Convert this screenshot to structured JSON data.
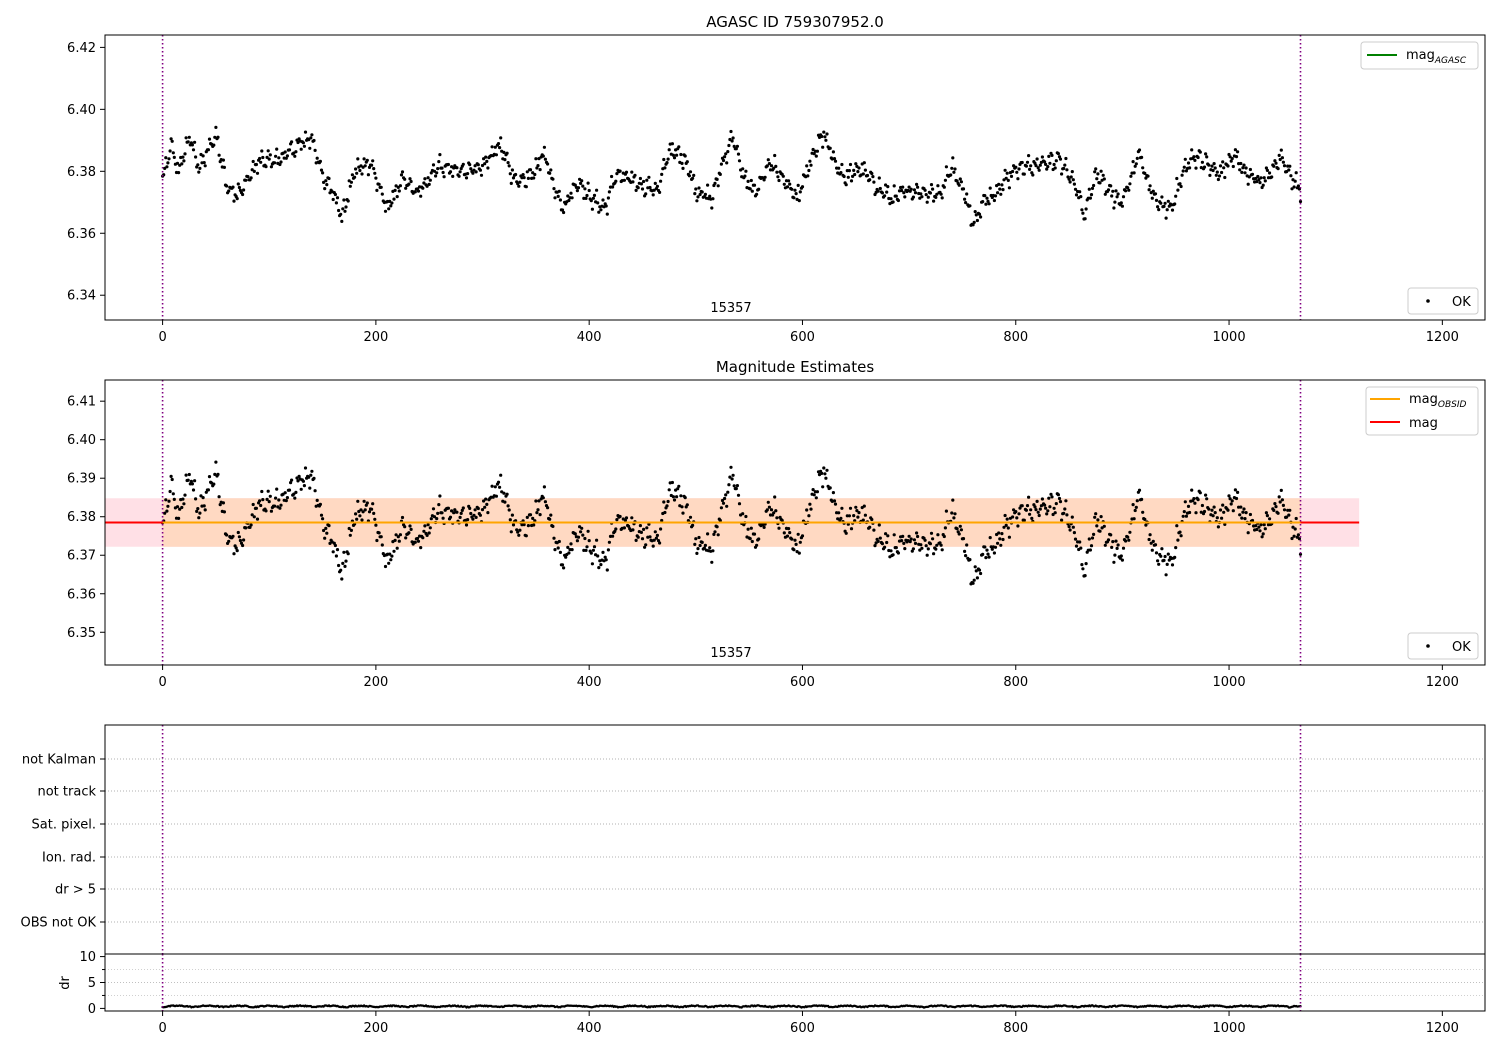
{
  "chart_data": [
    {
      "type": "scatter",
      "title": "AGASC ID 759307952.0",
      "xlabel": "",
      "ylabel": "",
      "xlim": [
        -54,
        1240
      ],
      "ylim": [
        6.332,
        6.424
      ],
      "xticks": [
        0,
        200,
        400,
        600,
        800,
        1000,
        1200
      ],
      "yticks": [
        6.34,
        6.36,
        6.38,
        6.4,
        6.42
      ],
      "xtick_labels": [
        "0",
        "200",
        "400",
        "600",
        "800",
        "1000",
        "1200"
      ],
      "ytick_labels": [
        "6.34",
        "6.36",
        "6.38",
        "6.40",
        "6.42"
      ],
      "vlines": [
        0,
        1067
      ],
      "obsid_label": "15357",
      "obsid_label_x": 533,
      "legend_lines": [
        {
          "label": "mag",
          "sub": "AGASC",
          "color": "#008000"
        }
      ],
      "legend_points": [
        {
          "label": "OK",
          "color": "#000000"
        }
      ],
      "series": [
        {
          "name": "OK",
          "x_range": [
            0,
            1067
          ],
          "anchors": [
            [
              0,
              6.377
            ],
            [
              8,
              6.388
            ],
            [
              15,
              6.38
            ],
            [
              25,
              6.391
            ],
            [
              35,
              6.381
            ],
            [
              50,
              6.392
            ],
            [
              60,
              6.376
            ],
            [
              70,
              6.372
            ],
            [
              90,
              6.383
            ],
            [
              110,
              6.384
            ],
            [
              130,
              6.389
            ],
            [
              140,
              6.391
            ],
            [
              150,
              6.378
            ],
            [
              160,
              6.374
            ],
            [
              168,
              6.365
            ],
            [
              180,
              6.38
            ],
            [
              195,
              6.383
            ],
            [
              210,
              6.368
            ],
            [
              225,
              6.377
            ],
            [
              240,
              6.373
            ],
            [
              260,
              6.382
            ],
            [
              280,
              6.38
            ],
            [
              300,
              6.381
            ],
            [
              315,
              6.389
            ],
            [
              330,
              6.377
            ],
            [
              345,
              6.378
            ],
            [
              358,
              6.386
            ],
            [
              365,
              6.378
            ],
            [
              375,
              6.368
            ],
            [
              390,
              6.377
            ],
            [
              400,
              6.372
            ],
            [
              415,
              6.368
            ],
            [
              425,
              6.379
            ],
            [
              440,
              6.377
            ],
            [
              455,
              6.375
            ],
            [
              465,
              6.374
            ],
            [
              475,
              6.387
            ],
            [
              490,
              6.384
            ],
            [
              500,
              6.374
            ],
            [
              515,
              6.371
            ],
            [
              525,
              6.383
            ],
            [
              535,
              6.391
            ],
            [
              545,
              6.378
            ],
            [
              555,
              6.373
            ],
            [
              570,
              6.383
            ],
            [
              585,
              6.376
            ],
            [
              595,
              6.371
            ],
            [
              610,
              6.385
            ],
            [
              620,
              6.392
            ],
            [
              630,
              6.383
            ],
            [
              640,
              6.378
            ],
            [
              655,
              6.381
            ],
            [
              670,
              6.375
            ],
            [
              685,
              6.371
            ],
            [
              700,
              6.374
            ],
            [
              720,
              6.373
            ],
            [
              730,
              6.373
            ],
            [
              740,
              6.382
            ],
            [
              752,
              6.373
            ],
            [
              760,
              6.363
            ],
            [
              770,
              6.37
            ],
            [
              785,
              6.375
            ],
            [
              800,
              6.381
            ],
            [
              820,
              6.382
            ],
            [
              840,
              6.384
            ],
            [
              855,
              6.376
            ],
            [
              865,
              6.366
            ],
            [
              875,
              6.38
            ],
            [
              890,
              6.373
            ],
            [
              900,
              6.369
            ],
            [
              915,
              6.386
            ],
            [
              925,
              6.375
            ],
            [
              935,
              6.369
            ],
            [
              945,
              6.368
            ],
            [
              960,
              6.382
            ],
            [
              970,
              6.385
            ],
            [
              990,
              6.379
            ],
            [
              1005,
              6.385
            ],
            [
              1015,
              6.38
            ],
            [
              1030,
              6.376
            ],
            [
              1050,
              6.385
            ],
            [
              1058,
              6.378
            ],
            [
              1067,
              6.374
            ]
          ]
        }
      ]
    },
    {
      "type": "scatter",
      "title": "Magnitude Estimates",
      "xlabel": "",
      "ylabel": "",
      "xlim": [
        -54,
        1240
      ],
      "ylim": [
        6.3415,
        6.4155
      ],
      "xticks": [
        0,
        200,
        400,
        600,
        800,
        1000,
        1200
      ],
      "yticks": [
        6.35,
        6.36,
        6.37,
        6.38,
        6.39,
        6.4,
        6.41
      ],
      "xtick_labels": [
        "0",
        "200",
        "400",
        "600",
        "800",
        "1000",
        "1200"
      ],
      "ytick_labels": [
        "6.35",
        "6.36",
        "6.37",
        "6.38",
        "6.39",
        "6.40",
        "6.41"
      ],
      "vlines": [
        0,
        1067
      ],
      "obsid_label": "15357",
      "obsid_label_x": 533,
      "bands": [
        {
          "name": "mag range",
          "x": [
            -54,
            1122
          ],
          "y": [
            6.3722,
            6.3848
          ],
          "color": "#ffe0e6"
        },
        {
          "name": "OBSID range",
          "x": [
            0,
            1067
          ],
          "y": [
            6.3722,
            6.3848
          ],
          "color": "#ffd9c2"
        }
      ],
      "hlines": [
        {
          "name": "mag",
          "y": 6.3785,
          "x": [
            -54,
            1122
          ],
          "color": "#ff0000"
        },
        {
          "name": "mag_OBSID",
          "y": 6.3785,
          "x": [
            0,
            1067
          ],
          "color": "#ffa500"
        }
      ],
      "legend_lines": [
        {
          "label": "mag",
          "sub": "OBSID",
          "color": "#ffa500"
        },
        {
          "label": "mag",
          "sub": "",
          "color": "#ff0000"
        }
      ],
      "legend_points": [
        {
          "label": "OK",
          "color": "#000000"
        }
      ],
      "series": [
        {
          "name": "OK",
          "x_range": [
            0,
            1067
          ],
          "anchors": [
            [
              0,
              6.377
            ],
            [
              8,
              6.388
            ],
            [
              15,
              6.38
            ],
            [
              25,
              6.391
            ],
            [
              35,
              6.381
            ],
            [
              50,
              6.392
            ],
            [
              60,
              6.376
            ],
            [
              70,
              6.372
            ],
            [
              90,
              6.383
            ],
            [
              110,
              6.384
            ],
            [
              130,
              6.389
            ],
            [
              140,
              6.391
            ],
            [
              150,
              6.378
            ],
            [
              160,
              6.374
            ],
            [
              168,
              6.365
            ],
            [
              180,
              6.38
            ],
            [
              195,
              6.383
            ],
            [
              210,
              6.368
            ],
            [
              225,
              6.377
            ],
            [
              240,
              6.373
            ],
            [
              260,
              6.382
            ],
            [
              280,
              6.38
            ],
            [
              300,
              6.381
            ],
            [
              315,
              6.389
            ],
            [
              330,
              6.377
            ],
            [
              345,
              6.378
            ],
            [
              358,
              6.386
            ],
            [
              365,
              6.378
            ],
            [
              375,
              6.368
            ],
            [
              390,
              6.377
            ],
            [
              400,
              6.372
            ],
            [
              415,
              6.368
            ],
            [
              425,
              6.379
            ],
            [
              440,
              6.377
            ],
            [
              455,
              6.375
            ],
            [
              465,
              6.374
            ],
            [
              475,
              6.387
            ],
            [
              490,
              6.384
            ],
            [
              500,
              6.374
            ],
            [
              515,
              6.371
            ],
            [
              525,
              6.383
            ],
            [
              535,
              6.391
            ],
            [
              545,
              6.378
            ],
            [
              555,
              6.373
            ],
            [
              570,
              6.383
            ],
            [
              585,
              6.376
            ],
            [
              595,
              6.371
            ],
            [
              610,
              6.385
            ],
            [
              620,
              6.392
            ],
            [
              630,
              6.383
            ],
            [
              640,
              6.378
            ],
            [
              655,
              6.381
            ],
            [
              670,
              6.375
            ],
            [
              685,
              6.371
            ],
            [
              700,
              6.374
            ],
            [
              720,
              6.373
            ],
            [
              730,
              6.373
            ],
            [
              740,
              6.382
            ],
            [
              752,
              6.373
            ],
            [
              760,
              6.363
            ],
            [
              770,
              6.37
            ],
            [
              785,
              6.375
            ],
            [
              800,
              6.381
            ],
            [
              820,
              6.382
            ],
            [
              840,
              6.384
            ],
            [
              855,
              6.376
            ],
            [
              865,
              6.366
            ],
            [
              875,
              6.38
            ],
            [
              890,
              6.373
            ],
            [
              900,
              6.369
            ],
            [
              915,
              6.386
            ],
            [
              925,
              6.375
            ],
            [
              935,
              6.369
            ],
            [
              945,
              6.368
            ],
            [
              960,
              6.382
            ],
            [
              970,
              6.385
            ],
            [
              990,
              6.379
            ],
            [
              1005,
              6.385
            ],
            [
              1015,
              6.38
            ],
            [
              1030,
              6.376
            ],
            [
              1050,
              6.385
            ],
            [
              1058,
              6.378
            ],
            [
              1067,
              6.374
            ]
          ]
        }
      ]
    },
    {
      "type": "scatter",
      "title": "",
      "xlabel": "",
      "ylabel": "",
      "xlim": [
        -54,
        1240
      ],
      "categories": [
        "OBS not OK",
        "dr > 5",
        "Ion. rad.",
        "Sat. pixel.",
        "not track",
        "not Kalman"
      ],
      "vlines": [
        0,
        1067
      ],
      "grid": "horizontal dotted",
      "series": []
    },
    {
      "type": "scatter",
      "title": "",
      "xlabel": "",
      "ylabel": "dr",
      "xlim": [
        -54,
        1240
      ],
      "ylim": [
        -0.5,
        10.5
      ],
      "xticks": [
        0,
        200,
        400,
        600,
        800,
        1000,
        1200
      ],
      "yticks": [
        0,
        5,
        10
      ],
      "xtick_labels": [
        "0",
        "200",
        "400",
        "600",
        "800",
        "1000",
        "1200"
      ],
      "ytick_labels": [
        "0",
        "5",
        "10"
      ],
      "vlines": [
        0,
        1067
      ],
      "series": [
        {
          "name": "dr",
          "x_range": [
            0,
            1067
          ],
          "anchors": [
            [
              0,
              0.3
            ],
            [
              1067,
              0.3
            ]
          ]
        }
      ]
    }
  ]
}
